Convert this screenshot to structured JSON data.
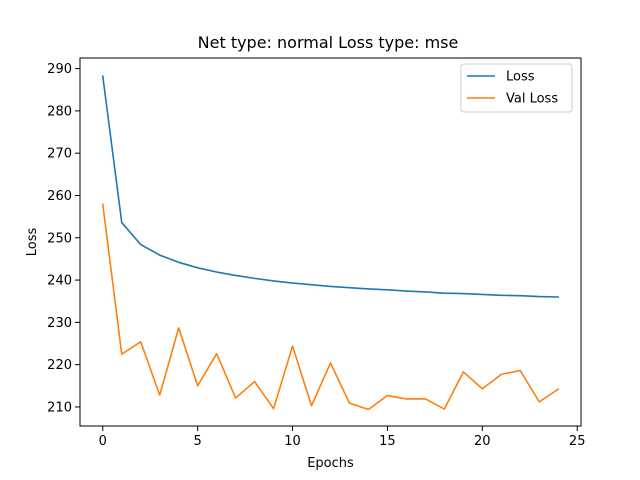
{
  "chart_data": {
    "type": "line",
    "title": "Net type: normal Loss type: mse",
    "xlabel": "Epochs",
    "ylabel": "Loss",
    "xlim": [
      -1.2,
      25.2
    ],
    "ylim": [
      205.5,
      292.5
    ],
    "xticks": [
      0,
      5,
      10,
      15,
      20,
      25
    ],
    "yticks": [
      210,
      220,
      230,
      240,
      250,
      260,
      270,
      280,
      290
    ],
    "grid": false,
    "legend_position": "top-right",
    "x": [
      0,
      1,
      2,
      3,
      4,
      5,
      6,
      7,
      8,
      9,
      10,
      11,
      12,
      13,
      14,
      15,
      16,
      17,
      18,
      19,
      20,
      21,
      22,
      23,
      24
    ],
    "series": [
      {
        "name": "Loss",
        "color": "#1f77b4",
        "values": [
          288.2,
          253.6,
          248.4,
          245.9,
          244.2,
          242.9,
          241.9,
          241.1,
          240.4,
          239.8,
          239.3,
          238.9,
          238.5,
          238.2,
          237.9,
          237.7,
          237.4,
          237.2,
          236.9,
          236.8,
          236.6,
          236.4,
          236.3,
          236.1,
          236.0
        ]
      },
      {
        "name": "Val Loss",
        "color": "#ff7f0e",
        "values": [
          257.9,
          222.5,
          225.4,
          212.8,
          228.7,
          215.0,
          222.6,
          212.1,
          216.0,
          209.6,
          224.4,
          210.3,
          220.4,
          210.9,
          209.4,
          212.7,
          211.9,
          211.9,
          209.5,
          218.3,
          214.3,
          217.7,
          218.6,
          211.2,
          214.2
        ]
      }
    ]
  }
}
